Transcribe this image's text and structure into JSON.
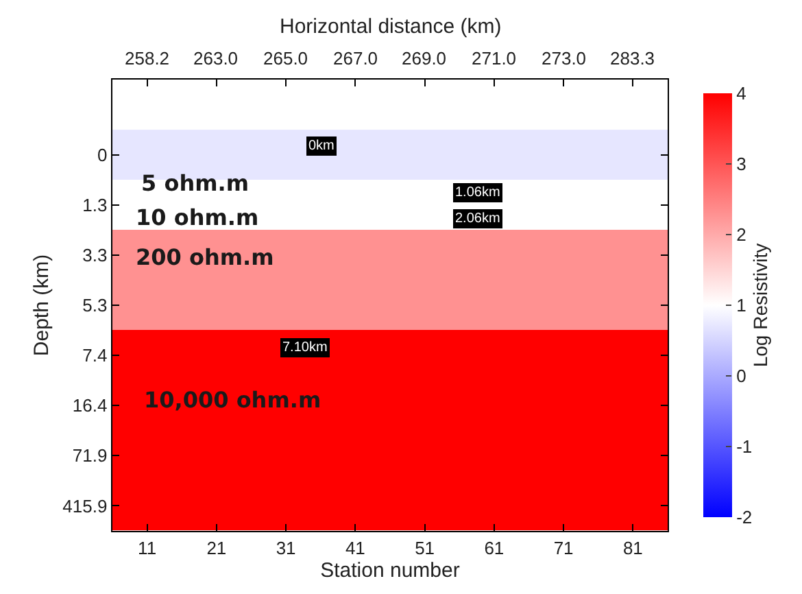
{
  "chart_data": {
    "type": "heatmap",
    "xlabel": "Station number",
    "x2label": "Horizontal distance (km)",
    "ylabel": "Depth (km)",
    "clabel": "Log Resistivity",
    "categories": [
      "11",
      "21",
      "31",
      "41",
      "51",
      "61",
      "71",
      "81"
    ],
    "y_categories": [
      "0",
      "1.3",
      "3.3",
      "5.3",
      "7.4",
      "16.4",
      "71.9",
      "415.9"
    ],
    "cells": [
      [
        0.7,
        0.7,
        0.7,
        0.7,
        0.7,
        0.7,
        0.7,
        0.7
      ],
      [
        1,
        1,
        1,
        1,
        1,
        1,
        1,
        1
      ],
      [
        2.3,
        2.3,
        2.3,
        2.3,
        2.3,
        2.3,
        2.3,
        2.3
      ],
      [
        2.3,
        2.3,
        2.3,
        2.3,
        2.3,
        2.3,
        2.3,
        2.3
      ],
      [
        4,
        4,
        4,
        4,
        4,
        4,
        4,
        4
      ],
      [
        4,
        4,
        4,
        4,
        4,
        4,
        4,
        4
      ],
      [
        4,
        4,
        4,
        4,
        4,
        4,
        4,
        4
      ],
      [
        4,
        4,
        4,
        4,
        4,
        4,
        4,
        4
      ]
    ],
    "clim": [
      -2,
      4
    ],
    "cticks": [
      -2,
      -1,
      0,
      1,
      2,
      3,
      4
    ],
    "annotations": [
      "5 ohm.m",
      "10 ohm.m",
      "200 ohm.m",
      "10,000 ohm.m",
      "0km",
      "1.06km",
      "2.06km",
      "7.10km",
      "258.2",
      "263.0",
      "265.0",
      "267.0",
      "269.0",
      "271.0",
      "273.0",
      "283.3"
    ],
    "grid": false
  }
}
